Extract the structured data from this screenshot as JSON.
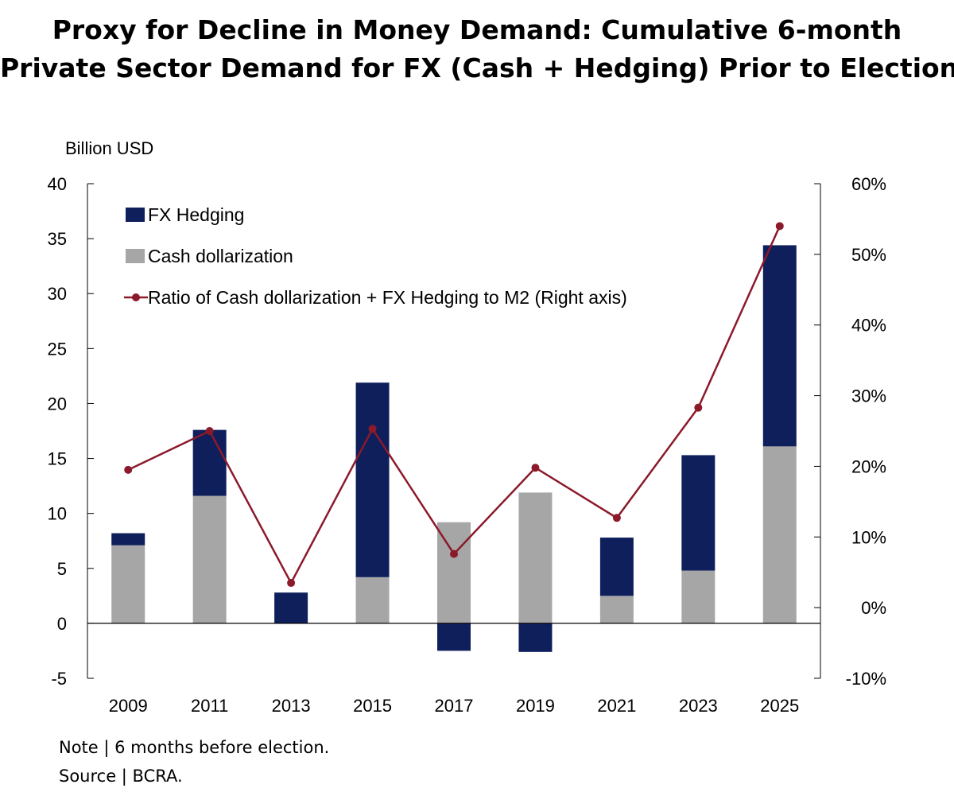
{
  "chart_data": {
    "type": "bar",
    "stacked": true,
    "title": "Proxy for Decline in Money Demand: Cumulative 6-month Private Sector Demand for FX (Cash + Hedging) Prior to Election",
    "title_lines": [
      "Proxy for Decline in Money Demand: Cumulative 6-month",
      "Private Sector Demand for FX (Cash + Hedging) Prior to Election"
    ],
    "ylabel": "Billion USD",
    "categories": [
      "2009",
      "2011",
      "2013",
      "2015",
      "2017",
      "2019",
      "2021",
      "2023",
      "2025"
    ],
    "ylim": [
      -5,
      40
    ],
    "yticks": [
      "40",
      "35",
      "30",
      "25",
      "20",
      "15",
      "10",
      "5",
      "0",
      "-5"
    ],
    "y2lim": [
      -10,
      60
    ],
    "y2ticks": [
      "60%",
      "50%",
      "40%",
      "30%",
      "20%",
      "10%",
      "0%",
      "-10%"
    ],
    "series": [
      {
        "name": "Cash dollarization",
        "type": "bar",
        "color": "#a6a6a6",
        "values": [
          7.1,
          11.6,
          0.0,
          4.2,
          9.2,
          11.9,
          2.5,
          4.8,
          16.1
        ]
      },
      {
        "name": "FX Hedging",
        "type": "bar",
        "color": "#0f1f5c",
        "values": [
          1.1,
          6.0,
          2.8,
          17.7,
          -2.5,
          -2.6,
          5.3,
          10.5,
          18.3
        ]
      },
      {
        "name": "Ratio of Cash dollarization + FX Hedging to M2  (Right axis)",
        "type": "line",
        "axis": "right",
        "color": "#8b1a2b",
        "values": [
          19.5,
          25.0,
          3.5,
          25.3,
          7.6,
          19.8,
          12.7,
          28.3,
          54.0
        ]
      }
    ],
    "legend": [
      {
        "label": "FX Hedging",
        "kind": "bar",
        "color": "#0f1f5c"
      },
      {
        "label": "Cash dollarization",
        "kind": "bar",
        "color": "#a6a6a6"
      },
      {
        "label": "Ratio of Cash dollarization + FX Hedging to M2  (Right axis)",
        "kind": "line",
        "color": "#8b1a2b"
      }
    ],
    "legend_position": "top-left",
    "grid": false
  },
  "note": "Note | 6 months before election.",
  "source": "Source | BCRA."
}
